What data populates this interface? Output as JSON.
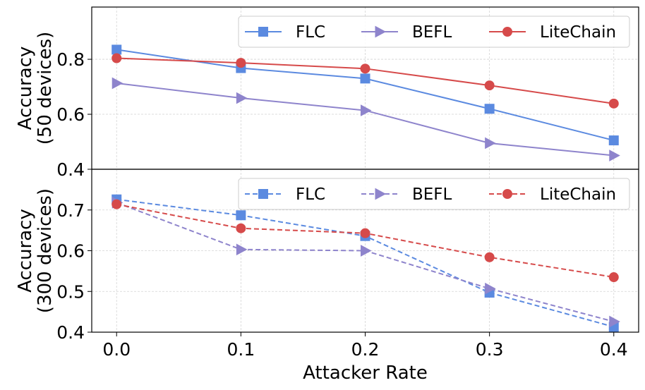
{
  "chart_data": [
    {
      "type": "line",
      "title": "",
      "xlabel": "",
      "ylabel": "Accuracy\n(50 devices)",
      "ylabel_lines": [
        "Accuracy",
        "(50 devices)"
      ],
      "x": [
        0.0,
        0.1,
        0.2,
        0.3,
        0.4
      ],
      "xlim": [
        -0.02,
        0.42
      ],
      "ylim": [
        0.4,
        0.99
      ],
      "yticks": [
        0.4,
        0.6,
        0.8
      ],
      "ytick_labels": [
        "0.4",
        "0.6",
        "0.8"
      ],
      "grid": true,
      "legend": "top-right",
      "line_style": "solid",
      "series": [
        {
          "name": "FLC",
          "values": [
            0.835,
            0.768,
            0.73,
            0.62,
            0.505
          ],
          "color": "#5b8ae0",
          "marker": "square"
        },
        {
          "name": "BEFL",
          "values": [
            0.713,
            0.659,
            0.614,
            0.495,
            0.45
          ],
          "color": "#8e84cc",
          "marker": "triangle-right"
        },
        {
          "name": "LiteChain",
          "values": [
            0.804,
            0.787,
            0.766,
            0.705,
            0.639
          ],
          "color": "#d64a4a",
          "marker": "circle"
        }
      ]
    },
    {
      "type": "line",
      "title": "",
      "xlabel": "Attacker Rate",
      "ylabel": "Accuracy\n(300 devices)",
      "ylabel_lines": [
        "Accuracy",
        "(300 devices)"
      ],
      "x": [
        0.0,
        0.1,
        0.2,
        0.3,
        0.4
      ],
      "xlim": [
        -0.02,
        0.42
      ],
      "xticks": [
        0.0,
        0.1,
        0.2,
        0.3,
        0.4
      ],
      "xtick_labels": [
        "0.0",
        "0.1",
        "0.2",
        "0.3",
        "0.4"
      ],
      "ylim": [
        0.4,
        0.8
      ],
      "yticks": [
        0.4,
        0.5,
        0.6,
        0.7
      ],
      "ytick_labels": [
        "0.4",
        "0.5",
        "0.6",
        "0.7"
      ],
      "grid": true,
      "legend": "top-right",
      "line_style": "dashed",
      "series": [
        {
          "name": "FLC",
          "values": [
            0.726,
            0.687,
            0.636,
            0.497,
            0.413
          ],
          "color": "#5b8ae0",
          "marker": "square"
        },
        {
          "name": "BEFL",
          "values": [
            0.718,
            0.603,
            0.6,
            0.507,
            0.426
          ],
          "color": "#8e84cc",
          "marker": "triangle-right"
        },
        {
          "name": "LiteChain",
          "values": [
            0.714,
            0.655,
            0.643,
            0.584,
            0.535
          ],
          "color": "#d64a4a",
          "marker": "circle"
        }
      ]
    }
  ]
}
